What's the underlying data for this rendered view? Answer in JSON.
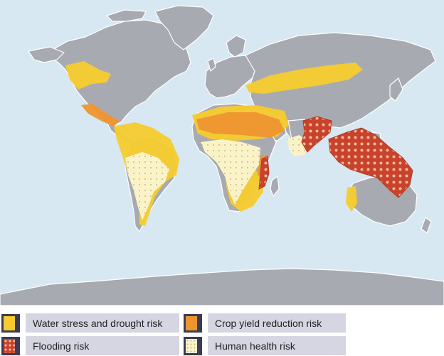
{
  "colors": {
    "ocean": "#d7e8f2",
    "land": "#a8aab2",
    "land_outline": "#ffffff",
    "water_stress": "#f6cc2e",
    "crop_yield": "#ef9530",
    "flooding": "#c8432a",
    "human_health": "#fbf3c8"
  },
  "legend": [
    {
      "label": "Water stress and drought risk",
      "icon": "yellow-square-icon"
    },
    {
      "label": "Crop yield reduction risk",
      "icon": "orange-square-icon"
    },
    {
      "label": "Flooding risk",
      "icon": "red-dotted-square-icon"
    },
    {
      "label": "Human health risk",
      "icon": "cream-dotted-square-icon"
    }
  ]
}
